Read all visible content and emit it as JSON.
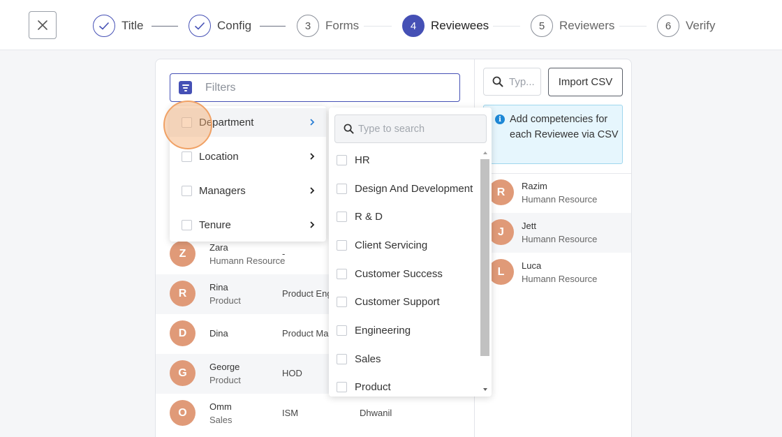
{
  "stepper": {
    "steps": [
      {
        "number": "",
        "label": "Title",
        "state": "done"
      },
      {
        "number": "",
        "label": "Config",
        "state": "done"
      },
      {
        "number": "3",
        "label": "Forms",
        "state": "pending"
      },
      {
        "number": "4",
        "label": "Reviewees",
        "state": "active"
      },
      {
        "number": "5",
        "label": "Reviewers",
        "state": "pending"
      },
      {
        "number": "6",
        "label": "Verify",
        "state": "pending"
      }
    ]
  },
  "filters": {
    "placeholder": "Filters",
    "menu": [
      "Department",
      "Location",
      "Managers",
      "Tenure"
    ],
    "department_search_placeholder": "Type to search",
    "departments": [
      "HR",
      "Design And Development",
      "R & D",
      "Client Servicing",
      "Customer Success",
      "Customer Support",
      "Engineering",
      "Sales",
      "Product"
    ]
  },
  "employees": [
    {
      "initial": "Z",
      "name": "Zara",
      "department": "Humann Resource",
      "role": "-",
      "manager": ""
    },
    {
      "initial": "R",
      "name": "Rina",
      "department": "Product",
      "role": "Product Eng",
      "manager": ""
    },
    {
      "initial": "D",
      "name": "Dina",
      "department": "",
      "role": "Product Man",
      "manager": ""
    },
    {
      "initial": "G",
      "name": "George",
      "department": "Product",
      "role": "HOD",
      "manager": ""
    },
    {
      "initial": "O",
      "name": "Omm",
      "department": "Sales",
      "role": "ISM",
      "manager": "Dhwanil"
    }
  ],
  "right_panel": {
    "search_placeholder": "Typ...",
    "import_label": "Import CSV",
    "info_icon": "i",
    "info_text": "Add competencies for each Reviewee via CSV",
    "reviewees": [
      {
        "initial": "R",
        "name": "Razim",
        "department": "Humann Resource"
      },
      {
        "initial": "J",
        "name": "Jett",
        "department": "Humann Resource"
      },
      {
        "initial": "L",
        "name": "Luca",
        "department": "Humann Resource"
      }
    ]
  },
  "colors": {
    "primary": "#4550b5",
    "avatar": "#e09a78",
    "info_bg": "#e6f6fd",
    "touch": "#f0a165"
  }
}
